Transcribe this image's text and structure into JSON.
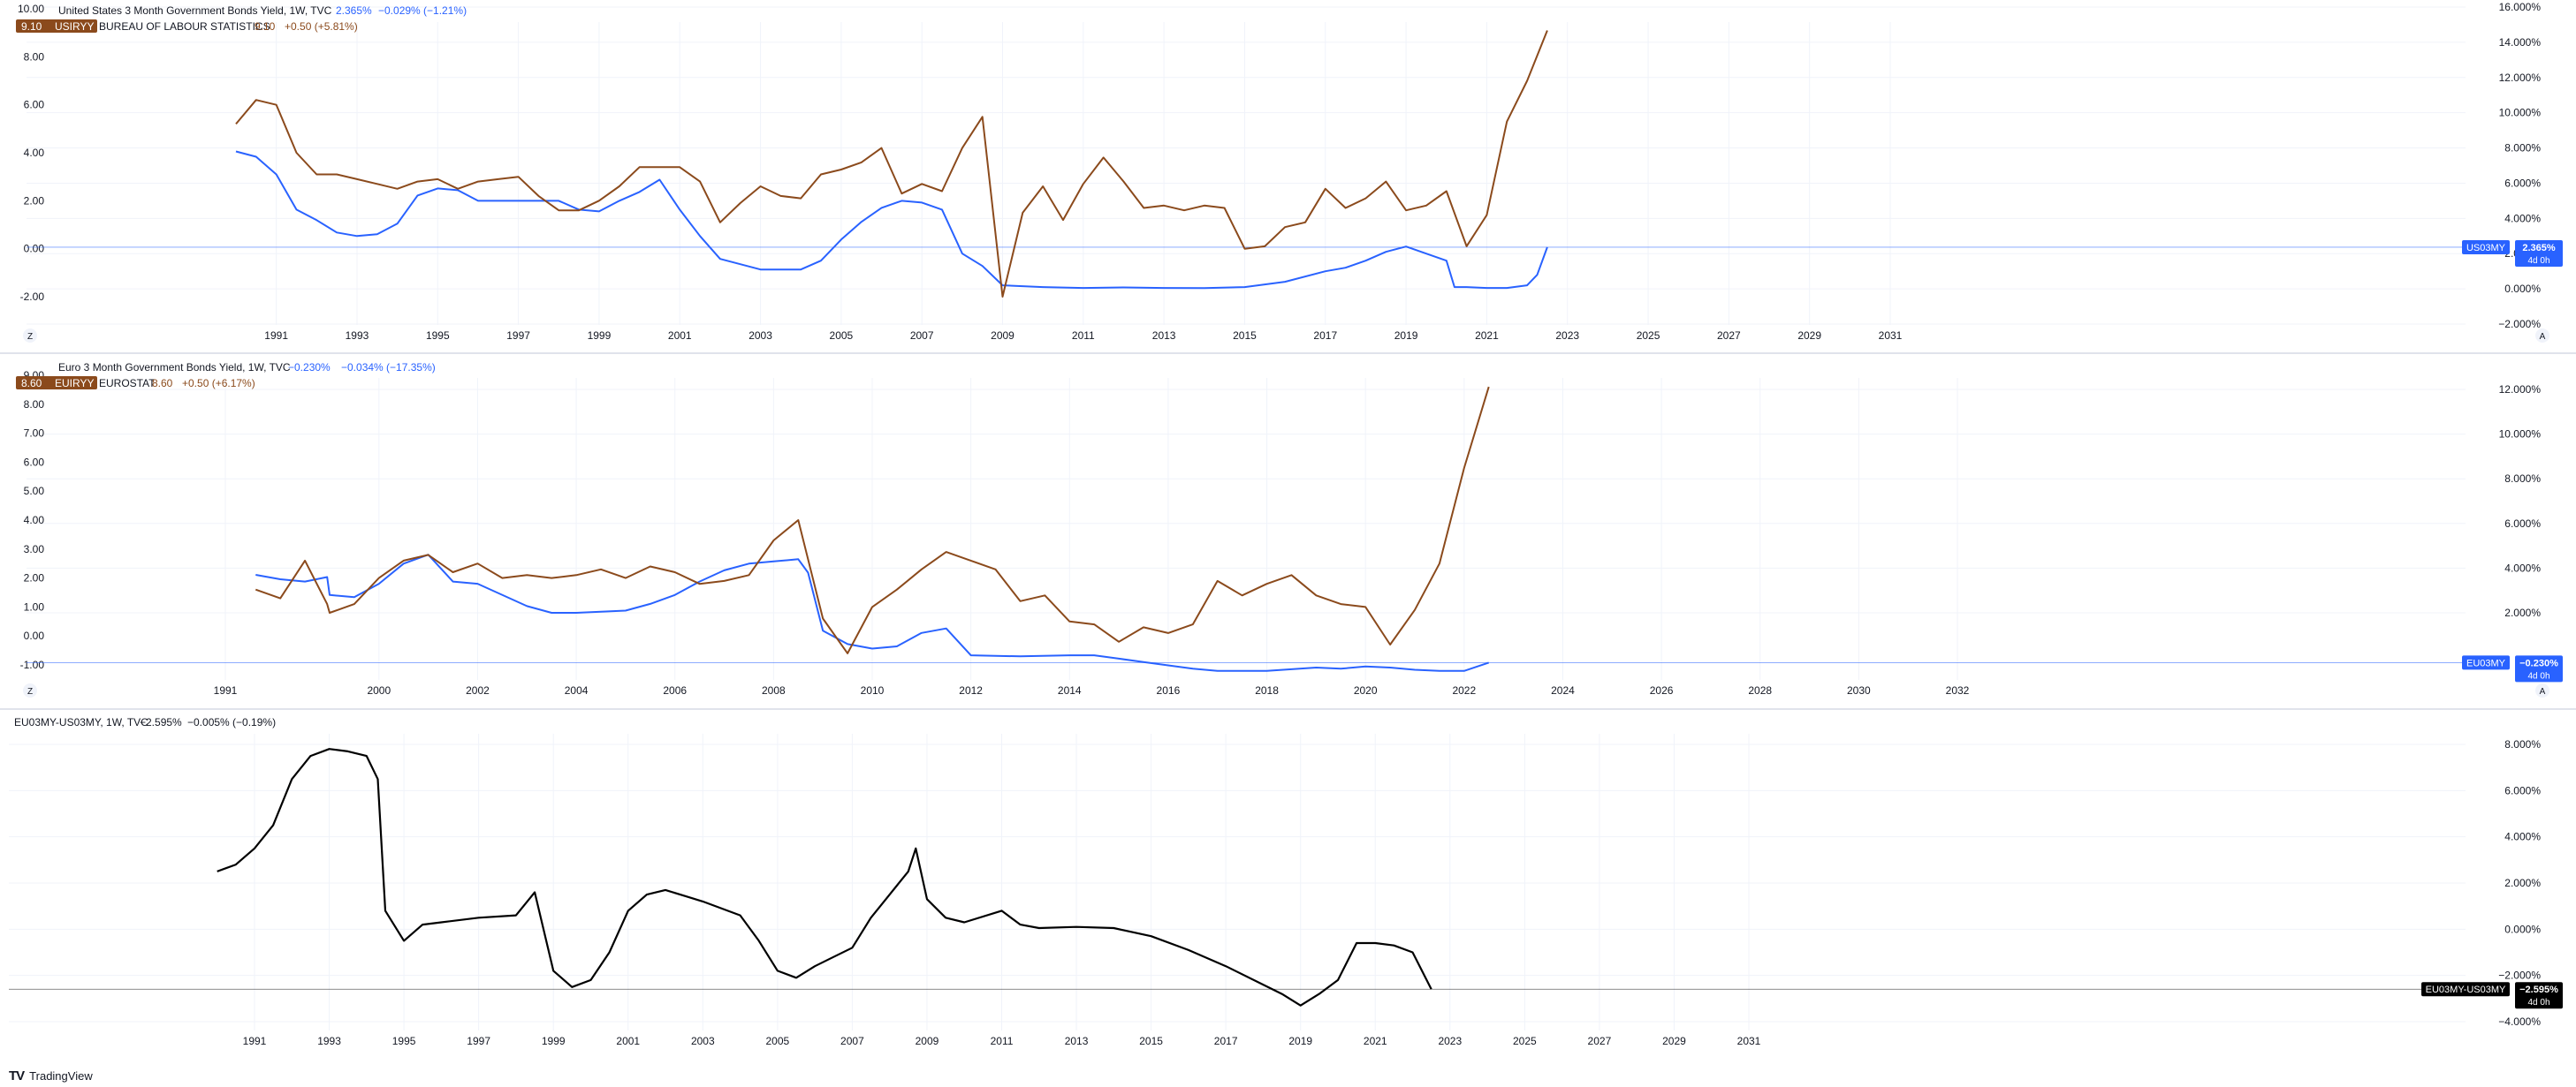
{
  "panes": [
    {
      "id": "us",
      "header": {
        "title": "United States 3 Month Government Bonds Yield, 1W, TVC",
        "primary_value": "2.365%",
        "primary_change": "−0.029% (−1.21%)",
        "secondary_source": "BUREAU OF LABOUR STATISTICS",
        "secondary_value": "9.10",
        "secondary_change": "+0.50 (+5.81%)",
        "badge_value": "9.10",
        "badge_label": "USIRYY"
      },
      "left_ticks": [
        "10.00",
        "8.00",
        "6.00",
        "4.00",
        "2.00",
        "0.00",
        "-2.00"
      ],
      "right_ticks": [
        "16.000%",
        "14.000%",
        "12.000%",
        "10.000%",
        "8.000%",
        "6.000%",
        "4.000%",
        "2.000%",
        "0.000%",
        "−2.000%"
      ],
      "x_ticks": [
        "1991",
        "1993",
        "1995",
        "1997",
        "1999",
        "2001",
        "2003",
        "2005",
        "2007",
        "2009",
        "2011",
        "2013",
        "2015",
        "2017",
        "2019",
        "2021",
        "2023",
        "2025",
        "2027",
        "2029",
        "2031"
      ],
      "price_tag": {
        "label": "US03MY",
        "value": "2.365%",
        "countdown": "4d 0h"
      },
      "corner_left": "Z",
      "corner_right": "A"
    },
    {
      "id": "eu",
      "header": {
        "title": "Euro 3 Month Government Bonds Yield, 1W, TVC",
        "primary_value": "−0.230%",
        "primary_change": "−0.034% (−17.35%)",
        "secondary_source": "EUROSTAT",
        "secondary_value": "8.60",
        "secondary_change": "+0.50 (+6.17%)",
        "badge_value": "8.60",
        "badge_label": "EUIRYY"
      },
      "left_ticks": [
        "9.00",
        "8.00",
        "7.00",
        "6.00",
        "5.00",
        "4.00",
        "3.00",
        "2.00",
        "1.00",
        "0.00",
        "-1.00"
      ],
      "right_ticks": [
        "12.000%",
        "10.000%",
        "8.000%",
        "6.000%",
        "4.000%",
        "2.000%"
      ],
      "x_ticks": [
        "1991",
        "2000",
        "2002",
        "2004",
        "2006",
        "2008",
        "2010",
        "2012",
        "2014",
        "2016",
        "2018",
        "2020",
        "2022",
        "2024",
        "2026",
        "2028",
        "2030",
        "2032"
      ],
      "price_tag": {
        "label": "EU03MY",
        "value": "−0.230%",
        "countdown": "4d 0h"
      },
      "corner_left": "Z",
      "corner_right": "A"
    },
    {
      "id": "spread",
      "header": {
        "title": "EU03MY-US03MY, 1W, TVC",
        "primary_value": "−2.595%",
        "primary_change": "−0.005% (−0.19%)"
      },
      "right_ticks": [
        "8.000%",
        "6.000%",
        "4.000%",
        "2.000%",
        "0.000%",
        "−2.000%",
        "−4.000%"
      ],
      "x_ticks": [
        "1991",
        "1993",
        "1995",
        "1997",
        "1999",
        "2001",
        "2003",
        "2005",
        "2007",
        "2009",
        "2011",
        "2013",
        "2015",
        "2017",
        "2019",
        "2021",
        "2023",
        "2025",
        "2027",
        "2029",
        "2031"
      ],
      "price_tag": {
        "label": "EU03MY-US03MY",
        "value": "−2.595%",
        "countdown": "4d 0h"
      }
    }
  ],
  "colors": {
    "yield_line": "#2962ff",
    "inflation_line": "#8b4a1c",
    "spread_line": "#000000",
    "grid": "#f0f3fa",
    "axis_text": "#131722",
    "separator": "#e0e3eb"
  },
  "footer": {
    "brand": "TradingView",
    "logo": "tradingview-logo"
  },
  "chart_data": [
    {
      "type": "line",
      "pane": "us",
      "series": [
        {
          "name": "US03MY",
          "axis": "right",
          "unit": "%",
          "x": [
            1990.0,
            1990.5,
            1991.0,
            1991.5,
            1992.0,
            1992.5,
            1993.0,
            1993.5,
            1994.0,
            1994.5,
            1995.0,
            1995.5,
            1996.0,
            1997.0,
            1998.0,
            1998.5,
            1999.0,
            1999.5,
            2000.0,
            2000.5,
            2001.0,
            2001.5,
            2002.0,
            2003.0,
            2004.0,
            2004.5,
            2005.0,
            2005.5,
            2006.0,
            2006.5,
            2007.0,
            2007.5,
            2008.0,
            2008.5,
            2009.0,
            2010.0,
            2011.0,
            2012.0,
            2013.0,
            2014.0,
            2015.0,
            2016.0,
            2017.0,
            2017.5,
            2018.0,
            2018.5,
            2019.0,
            2019.5,
            2020.0,
            2020.2,
            2020.5,
            2021.0,
            2021.5,
            2022.0,
            2022.25,
            2022.5
          ],
          "y": [
            7.8,
            7.5,
            6.5,
            4.5,
            3.9,
            3.2,
            3.0,
            3.1,
            3.7,
            5.3,
            5.7,
            5.6,
            5.0,
            5.0,
            5.0,
            4.5,
            4.4,
            5.0,
            5.5,
            6.2,
            4.5,
            3.0,
            1.7,
            1.1,
            1.1,
            1.6,
            2.8,
            3.8,
            4.6,
            5.0,
            4.9,
            4.5,
            2.0,
            1.3,
            0.2,
            0.1,
            0.05,
            0.08,
            0.05,
            0.04,
            0.1,
            0.4,
            1.0,
            1.2,
            1.6,
            2.1,
            2.4,
            2.0,
            1.6,
            0.1,
            0.1,
            0.05,
            0.05,
            0.2,
            0.8,
            2.365
          ]
        },
        {
          "name": "USIRYY",
          "axis": "left",
          "unit": "%",
          "x": [
            1990.0,
            1990.5,
            1991.0,
            1991.5,
            1992.0,
            1992.5,
            1993.0,
            1993.5,
            1994.0,
            1994.5,
            1995.0,
            1995.5,
            1996.0,
            1996.5,
            1997.0,
            1997.5,
            1998.0,
            1998.5,
            1999.0,
            1999.5,
            2000.0,
            2000.5,
            2001.0,
            2001.5,
            2002.0,
            2002.5,
            2003.0,
            2003.5,
            2004.0,
            2004.5,
            2005.0,
            2005.5,
            2006.0,
            2006.5,
            2007.0,
            2007.5,
            2008.0,
            2008.5,
            2009.0,
            2009.5,
            2010.0,
            2010.5,
            2011.0,
            2011.5,
            2012.0,
            2012.5,
            2013.0,
            2013.5,
            2014.0,
            2014.5,
            2015.0,
            2015.5,
            2016.0,
            2016.5,
            2017.0,
            2017.5,
            2018.0,
            2018.5,
            2019.0,
            2019.5,
            2020.0,
            2020.5,
            2021.0,
            2021.5,
            2022.0,
            2022.5
          ],
          "y": [
            5.2,
            6.2,
            6.0,
            4.0,
            3.1,
            3.1,
            2.9,
            2.7,
            2.5,
            2.8,
            2.9,
            2.5,
            2.8,
            2.9,
            3.0,
            2.2,
            1.6,
            1.6,
            2.0,
            2.6,
            3.4,
            3.4,
            3.4,
            2.8,
            1.1,
            1.9,
            2.6,
            2.2,
            2.1,
            3.1,
            3.3,
            3.6,
            4.2,
            2.3,
            2.7,
            2.4,
            4.2,
            5.5,
            -2.0,
            1.5,
            2.6,
            1.2,
            2.7,
            3.8,
            2.8,
            1.7,
            1.8,
            1.6,
            1.8,
            1.7,
            0.0,
            0.1,
            0.9,
            1.1,
            2.5,
            1.7,
            2.1,
            2.8,
            1.6,
            1.8,
            2.4,
            0.1,
            1.4,
            5.3,
            7.0,
            9.1
          ]
        }
      ]
    },
    {
      "type": "line",
      "pane": "eu",
      "series": [
        {
          "name": "EU03MY",
          "axis": "right",
          "unit": "%",
          "x": [
            1997.5,
            1998.0,
            1998.5,
            1998.95,
            1999.0,
            1999.5,
            2000.0,
            2000.5,
            2001.0,
            2001.5,
            2002.0,
            2003.0,
            2003.5,
            2004.0,
            2005.0,
            2005.5,
            2006.0,
            2006.5,
            2007.0,
            2007.5,
            2008.0,
            2008.5,
            2008.7,
            2009.0,
            2009.5,
            2010.0,
            2010.5,
            2011.0,
            2011.5,
            2012.0,
            2013.0,
            2014.0,
            2014.5,
            2015.0,
            2015.5,
            2016.0,
            2016.5,
            2017.0,
            2018.0,
            2019.0,
            2019.5,
            2020.0,
            2020.5,
            2021.0,
            2021.5,
            2022.0,
            2022.5
          ],
          "y": [
            3.7,
            3.5,
            3.4,
            3.6,
            2.8,
            2.7,
            3.3,
            4.2,
            4.6,
            3.4,
            3.3,
            2.3,
            2.0,
            2.0,
            2.1,
            2.4,
            2.8,
            3.4,
            3.9,
            4.2,
            4.3,
            4.4,
            3.8,
            1.2,
            0.6,
            0.4,
            0.5,
            1.1,
            1.3,
            0.1,
            0.05,
            0.1,
            0.1,
            -0.05,
            -0.2,
            -0.35,
            -0.5,
            -0.6,
            -0.6,
            -0.45,
            -0.5,
            -0.4,
            -0.45,
            -0.55,
            -0.6,
            -0.6,
            -0.23
          ]
        },
        {
          "name": "EUIRYY",
          "axis": "left",
          "unit": "%",
          "x": [
            1997.5,
            1998.0,
            1998.5,
            1998.95,
            1999.0,
            1999.5,
            2000.0,
            2000.5,
            2001.0,
            2001.5,
            2002.0,
            2002.5,
            2003.0,
            2003.5,
            2004.0,
            2004.5,
            2005.0,
            2005.5,
            2006.0,
            2006.5,
            2007.0,
            2007.5,
            2008.0,
            2008.5,
            2009.0,
            2009.5,
            2010.0,
            2010.5,
            2011.0,
            2011.5,
            2012.0,
            2012.5,
            2013.0,
            2013.5,
            2014.0,
            2014.5,
            2015.0,
            2015.5,
            2016.0,
            2016.5,
            2017.0,
            2017.5,
            2018.0,
            2018.5,
            2019.0,
            2019.5,
            2020.0,
            2020.5,
            2021.0,
            2021.5,
            2022.0,
            2022.5
          ],
          "y": [
            1.6,
            1.3,
            2.6,
            1.1,
            0.8,
            1.1,
            2.0,
            2.6,
            2.8,
            2.2,
            2.5,
            2.0,
            2.1,
            2.0,
            2.1,
            2.3,
            2.0,
            2.4,
            2.2,
            1.8,
            1.9,
            2.1,
            3.3,
            4.0,
            0.6,
            -0.6,
            1.0,
            1.6,
            2.3,
            2.9,
            2.6,
            2.3,
            1.2,
            1.4,
            0.5,
            0.4,
            -0.2,
            0.3,
            0.1,
            0.4,
            1.9,
            1.4,
            1.8,
            2.1,
            1.4,
            1.1,
            1.0,
            -0.3,
            0.9,
            2.5,
            5.8,
            8.6
          ]
        }
      ]
    },
    {
      "type": "line",
      "pane": "spread",
      "series": [
        {
          "name": "EU03MY-US03MY",
          "axis": "right",
          "unit": "%",
          "x": [
            1990.0,
            1990.5,
            1991.0,
            1991.5,
            1992.0,
            1992.5,
            1993.0,
            1993.5,
            1994.0,
            1994.3,
            1994.5,
            1995.0,
            1995.5,
            1996.0,
            1997.0,
            1998.0,
            1998.5,
            1999.0,
            1999.5,
            2000.0,
            2000.5,
            2001.0,
            2001.5,
            2002.0,
            2003.0,
            2004.0,
            2004.5,
            2005.0,
            2005.5,
            2006.0,
            2006.5,
            2007.0,
            2007.5,
            2008.0,
            2008.5,
            2008.7,
            2009.0,
            2009.5,
            2010.0,
            2011.0,
            2011.5,
            2012.0,
            2013.0,
            2014.0,
            2015.0,
            2016.0,
            2017.0,
            2018.0,
            2018.5,
            2019.0,
            2019.5,
            2020.0,
            2020.5,
            2021.0,
            2021.5,
            2022.0,
            2022.5
          ],
          "y": [
            2.5,
            2.8,
            3.5,
            4.5,
            6.5,
            7.5,
            7.8,
            7.7,
            7.5,
            6.5,
            0.8,
            -0.5,
            0.2,
            0.3,
            0.5,
            0.6,
            1.6,
            -1.8,
            -2.5,
            -2.2,
            -1.0,
            0.8,
            1.5,
            1.7,
            1.2,
            0.6,
            -0.5,
            -1.8,
            -2.1,
            -1.6,
            -1.2,
            -0.8,
            0.5,
            1.5,
            2.5,
            3.5,
            1.3,
            0.5,
            0.3,
            0.8,
            0.2,
            0.05,
            0.1,
            0.05,
            -0.3,
            -0.9,
            -1.6,
            -2.4,
            -2.8,
            -3.3,
            -2.8,
            -2.2,
            -0.6,
            -0.6,
            -0.7,
            -1.0,
            -2.595
          ]
        }
      ]
    }
  ]
}
